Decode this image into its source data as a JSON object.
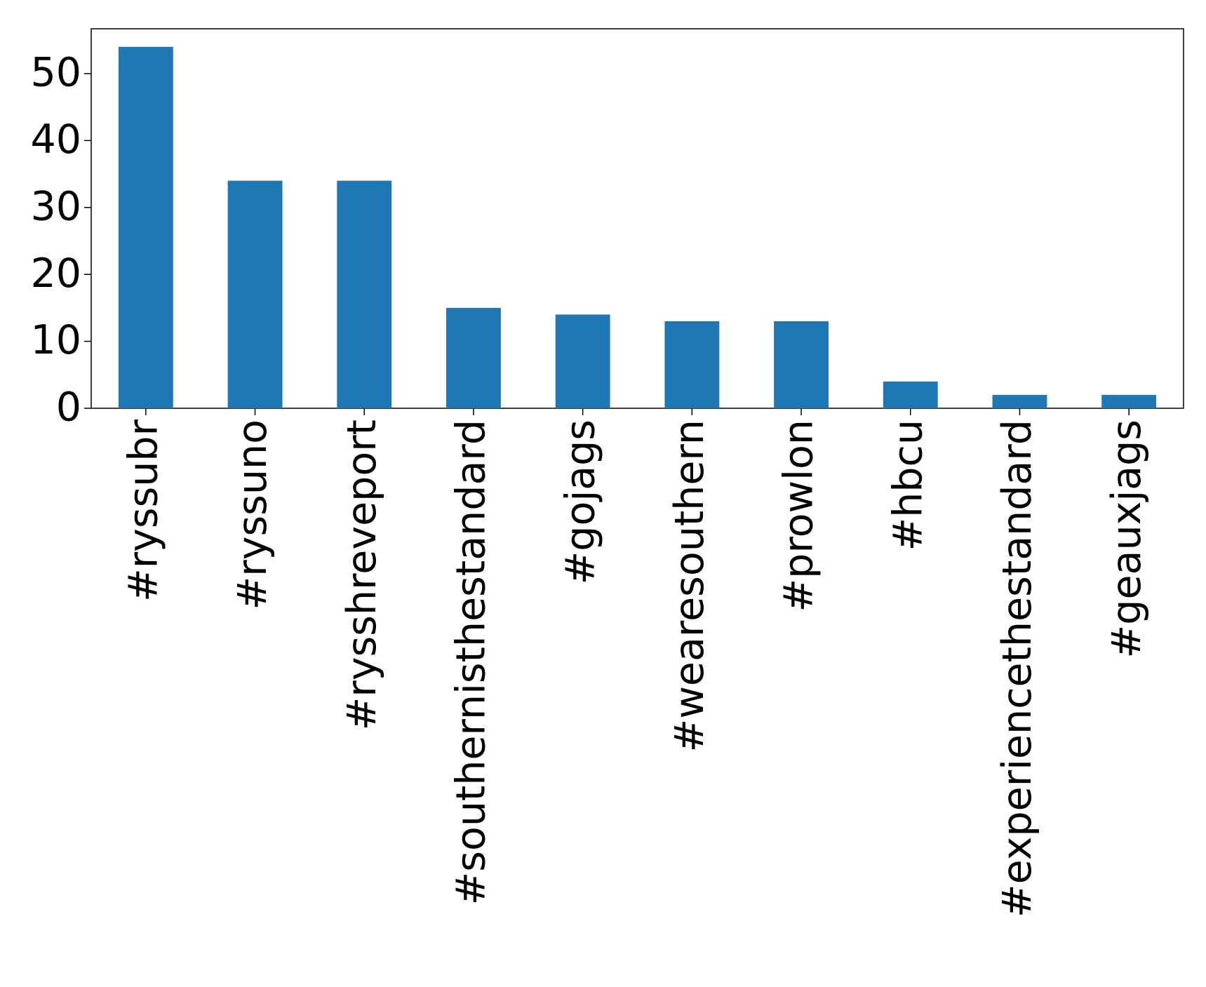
{
  "chart_data": {
    "type": "bar",
    "categories": [
      "#ryssubr",
      "#ryssuno",
      "#rysshreveport",
      "#southernisthestandard",
      "#gojags",
      "#wearesouthern",
      "#prowlon",
      "#hbcu",
      "#experiencethestandard",
      "#geauxjags"
    ],
    "values": [
      54,
      34,
      34,
      15,
      14,
      13,
      13,
      4,
      2,
      2
    ],
    "color": "#1f77b4",
    "ylim": [
      0,
      56.7
    ],
    "yticks": [
      0,
      10,
      20,
      30,
      40,
      50
    ],
    "grid": false
  }
}
